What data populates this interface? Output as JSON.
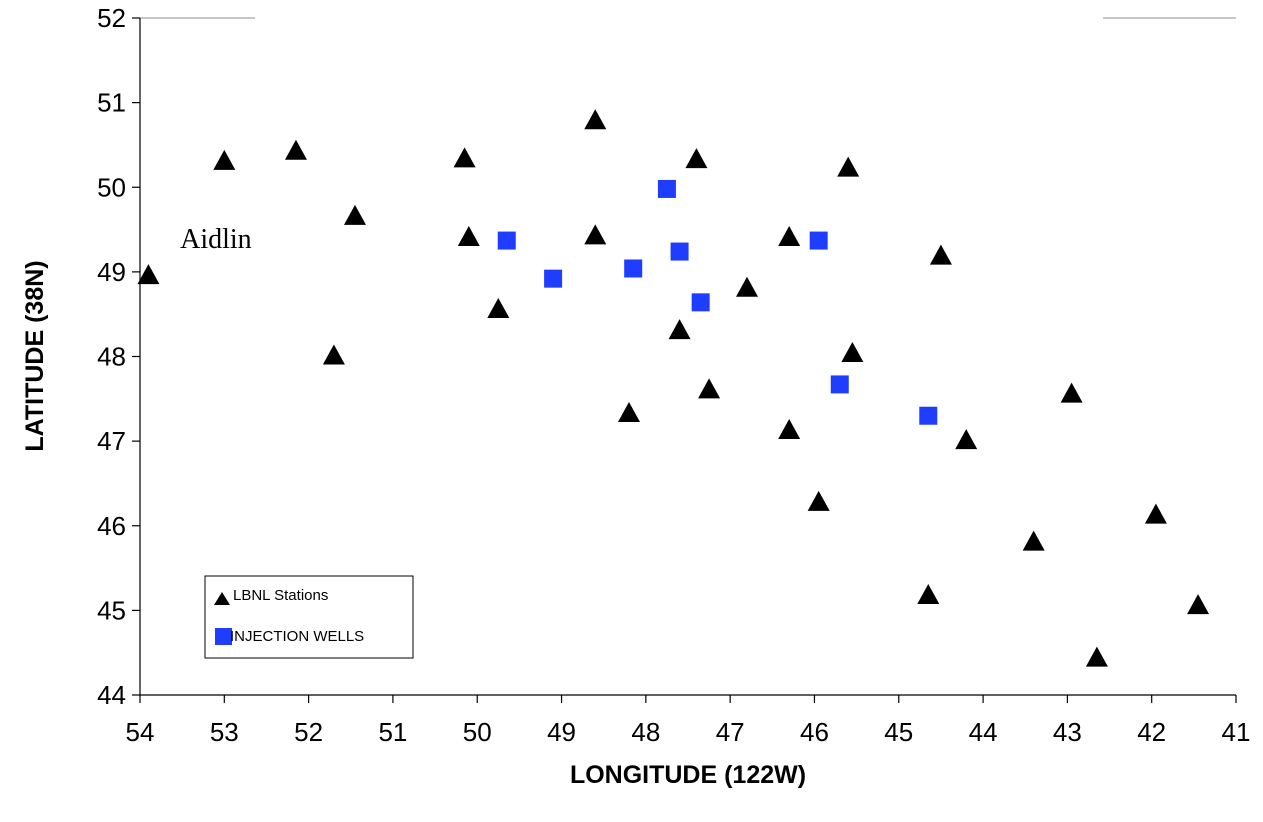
{
  "chart_data": {
    "type": "scatter",
    "xlabel": "LONGITUDE (122W)",
    "ylabel": "LATITUDE (38N)",
    "xlim": [
      54,
      41
    ],
    "ylim": [
      44,
      52
    ],
    "x_reversed": true,
    "xticks": [
      54,
      53,
      52,
      51,
      50,
      49,
      48,
      47,
      46,
      45,
      44,
      43,
      42,
      41
    ],
    "yticks": [
      44,
      45,
      46,
      47,
      48,
      49,
      50,
      51,
      52
    ],
    "grid": false,
    "legend_position": "bottom-left",
    "annotations": [
      {
        "text": "Aidlin",
        "x": 53.1,
        "y": 49.4
      }
    ],
    "series": [
      {
        "name": "LBNL Stations",
        "marker": "triangle",
        "color": "#000000",
        "points": [
          [
            53.9,
            48.95
          ],
          [
            53.0,
            50.3
          ],
          [
            52.15,
            50.42
          ],
          [
            51.45,
            49.65
          ],
          [
            51.7,
            48.0
          ],
          [
            50.15,
            50.33
          ],
          [
            50.1,
            49.4
          ],
          [
            49.75,
            48.55
          ],
          [
            48.6,
            50.78
          ],
          [
            48.6,
            49.42
          ],
          [
            47.4,
            50.32
          ],
          [
            47.6,
            48.3
          ],
          [
            47.25,
            47.6
          ],
          [
            46.8,
            48.8
          ],
          [
            48.2,
            47.32
          ],
          [
            46.3,
            49.4
          ],
          [
            46.3,
            47.12
          ],
          [
            45.95,
            46.27
          ],
          [
            45.6,
            50.22
          ],
          [
            45.55,
            48.03
          ],
          [
            44.5,
            49.18
          ],
          [
            44.2,
            47.0
          ],
          [
            44.65,
            45.17
          ],
          [
            43.4,
            45.8
          ],
          [
            42.95,
            47.55
          ],
          [
            41.95,
            46.12
          ],
          [
            42.65,
            44.43
          ],
          [
            41.45,
            45.05
          ]
        ]
      },
      {
        "name": "INJECTION WELLS",
        "marker": "square",
        "color": "#1f3dff",
        "points": [
          [
            49.65,
            49.37
          ],
          [
            49.1,
            48.92
          ],
          [
            48.15,
            49.04
          ],
          [
            47.75,
            49.98
          ],
          [
            47.6,
            49.24
          ],
          [
            47.35,
            48.64
          ],
          [
            45.95,
            49.37
          ],
          [
            45.7,
            47.67
          ],
          [
            44.65,
            47.3
          ]
        ]
      }
    ]
  }
}
